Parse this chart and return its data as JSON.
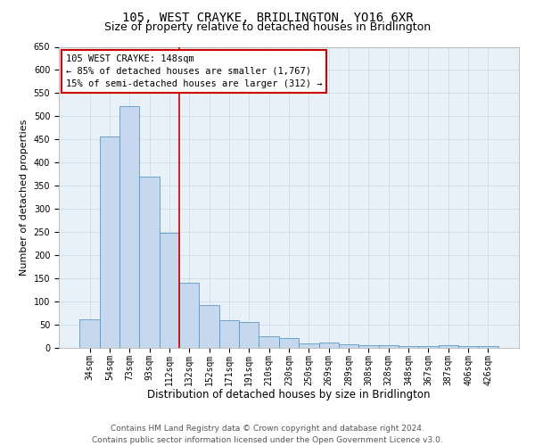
{
  "title": "105, WEST CRAYKE, BRIDLINGTON, YO16 6XR",
  "subtitle": "Size of property relative to detached houses in Bridlington",
  "xlabel": "Distribution of detached houses by size in Bridlington",
  "ylabel": "Number of detached properties",
  "categories": [
    "34sqm",
    "54sqm",
    "73sqm",
    "93sqm",
    "112sqm",
    "132sqm",
    "152sqm",
    "171sqm",
    "191sqm",
    "210sqm",
    "230sqm",
    "250sqm",
    "269sqm",
    "289sqm",
    "308sqm",
    "328sqm",
    "348sqm",
    "367sqm",
    "387sqm",
    "406sqm",
    "426sqm"
  ],
  "values": [
    62,
    457,
    521,
    370,
    248,
    140,
    93,
    60,
    56,
    25,
    22,
    10,
    12,
    7,
    6,
    5,
    4,
    3,
    5,
    3,
    4
  ],
  "bar_color": "#c5d8ed",
  "bar_edge_color": "#5a9ac5",
  "grid_color": "#c8d8e8",
  "background_color": "#e8f0f8",
  "annotation_text_line1": "105 WEST CRAYKE: 148sqm",
  "annotation_text_line2": "← 85% of detached houses are smaller (1,767)",
  "annotation_text_line3": "15% of semi-detached houses are larger (312) →",
  "annotation_box_color": "#ffffff",
  "annotation_box_edge_color": "#cc0000",
  "vline_color": "#cc0000",
  "vline_x": 4.5,
  "ylim": [
    0,
    650
  ],
  "yticks": [
    0,
    50,
    100,
    150,
    200,
    250,
    300,
    350,
    400,
    450,
    500,
    550,
    600,
    650
  ],
  "footer_line1": "Contains HM Land Registry data © Crown copyright and database right 2024.",
  "footer_line2": "Contains public sector information licensed under the Open Government Licence v3.0.",
  "title_fontsize": 10,
  "subtitle_fontsize": 9,
  "xlabel_fontsize": 8.5,
  "ylabel_fontsize": 8,
  "tick_fontsize": 7,
  "annotation_fontsize": 7.5,
  "footer_fontsize": 6.5
}
